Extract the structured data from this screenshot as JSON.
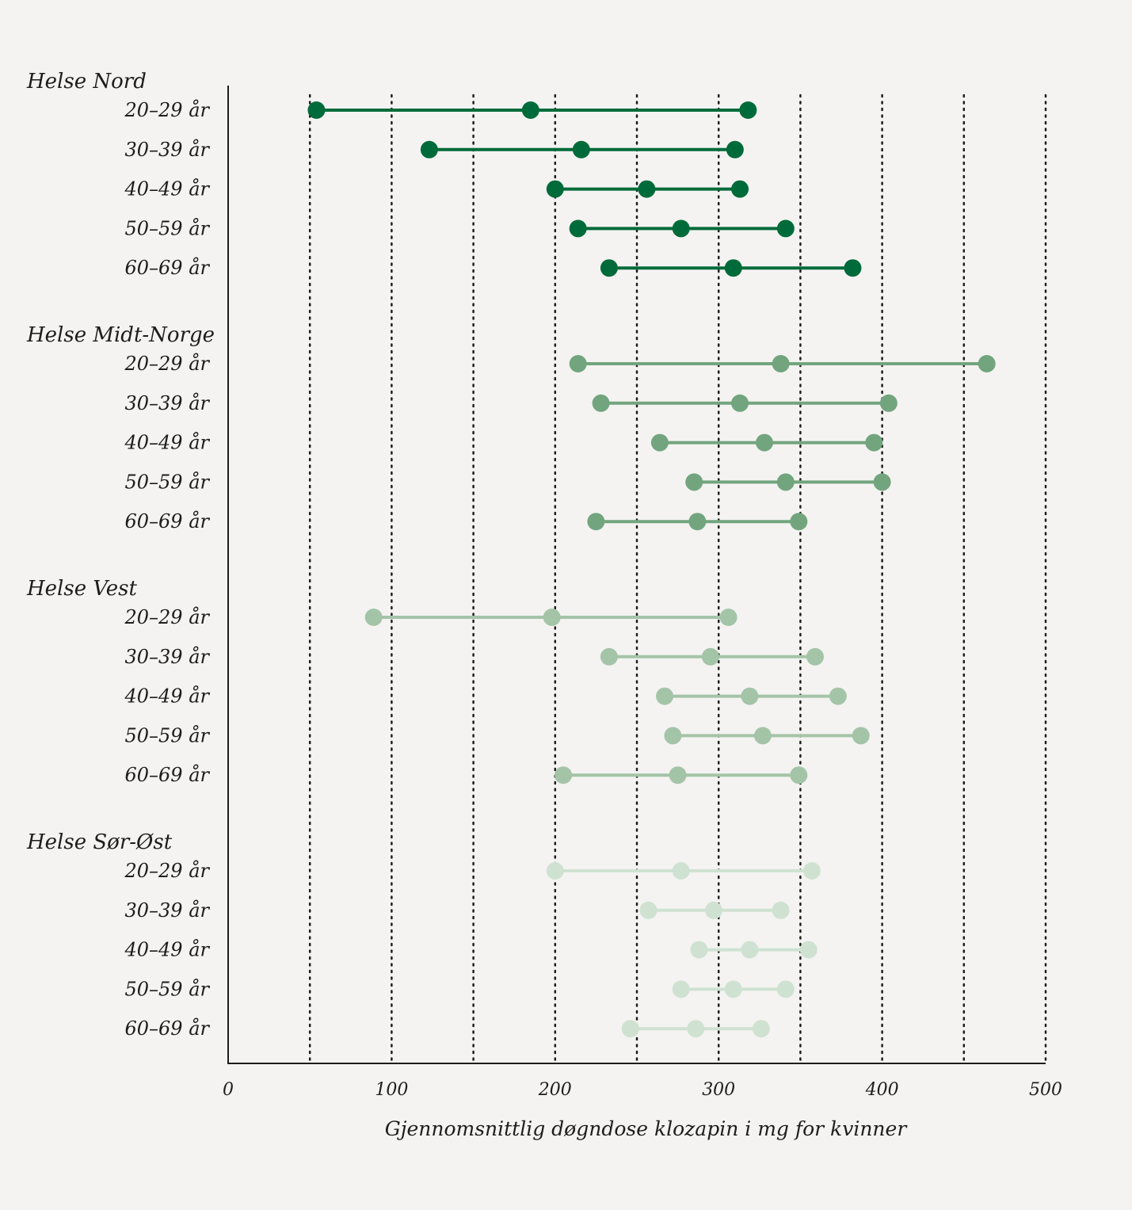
{
  "chart_data": {
    "type": "dot-range",
    "xlabel": "Gjennomsnittlig døgndose klozapin i mg for kvinner",
    "xlim": [
      0,
      500
    ],
    "xticks": [
      0,
      100,
      200,
      300,
      400,
      500
    ],
    "gridlines": [
      50,
      100,
      150,
      200,
      250,
      300,
      350,
      400,
      450,
      500
    ],
    "grid": "dotted-vertical",
    "groups": [
      {
        "name": "Helse Nord",
        "color": "#006b3a",
        "rows": [
          {
            "label": "20–29 år",
            "values": [
              54,
              185,
              318
            ]
          },
          {
            "label": "30–39 år",
            "values": [
              123,
              216,
              310
            ]
          },
          {
            "label": "40–49 år",
            "values": [
              200,
              256,
              313
            ]
          },
          {
            "label": "50–59 år",
            "values": [
              214,
              277,
              341
            ]
          },
          {
            "label": "60–69 år",
            "values": [
              233,
              309,
              382
            ]
          }
        ]
      },
      {
        "name": "Helse Midt-Norge",
        "color": "#72a57e",
        "rows": [
          {
            "label": "20–29 år",
            "values": [
              214,
              338,
              464
            ]
          },
          {
            "label": "30–39 år",
            "values": [
              228,
              313,
              404
            ]
          },
          {
            "label": "40–49 år",
            "values": [
              264,
              328,
              395
            ]
          },
          {
            "label": "50–59 år",
            "values": [
              285,
              341,
              400
            ]
          },
          {
            "label": "60–69 år",
            "values": [
              225,
              287,
              349
            ]
          }
        ]
      },
      {
        "name": "Helse Vest",
        "color": "#a4c4a8",
        "rows": [
          {
            "label": "20–29 år",
            "values": [
              89,
              198,
              306
            ]
          },
          {
            "label": "30–39 år",
            "values": [
              233,
              295,
              359
            ]
          },
          {
            "label": "40–49 år",
            "values": [
              267,
              319,
              373
            ]
          },
          {
            "label": "50–59 år",
            "values": [
              272,
              327,
              387
            ]
          },
          {
            "label": "60–69 år",
            "values": [
              205,
              275,
              349
            ]
          }
        ]
      },
      {
        "name": "Helse Sør-Øst",
        "color": "#cfe2d2",
        "rows": [
          {
            "label": "20–29 år",
            "values": [
              200,
              277,
              357
            ]
          },
          {
            "label": "30–39 år",
            "values": [
              257,
              297,
              338
            ]
          },
          {
            "label": "40–49 år",
            "values": [
              288,
              319,
              355
            ]
          },
          {
            "label": "50–59 år",
            "values": [
              277,
              309,
              341
            ]
          },
          {
            "label": "60–69 år",
            "values": [
              246,
              286,
              326
            ]
          }
        ]
      }
    ]
  }
}
